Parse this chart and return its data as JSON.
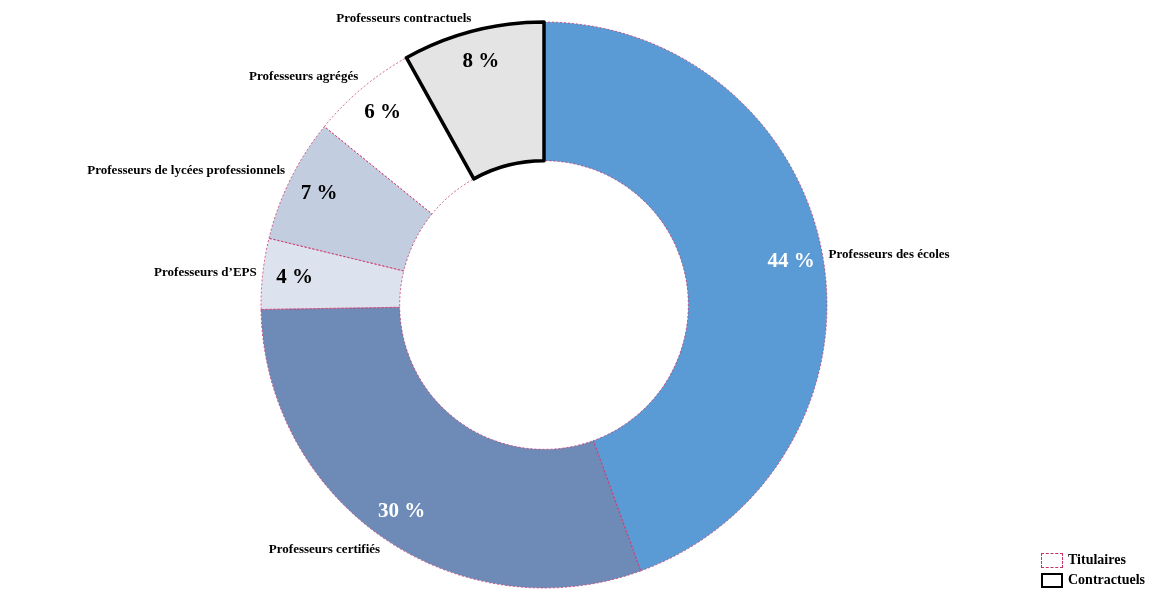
{
  "chart_data": {
    "type": "donut",
    "categories": [
      "Professeurs des écoles",
      "Professeurs certifiés",
      "Professeurs d’EPS",
      "Professeurs de lycées professionnels",
      "Professeurs agrégés",
      "Professeurs contractuels"
    ],
    "values": [
      44,
      30,
      4,
      7,
      6,
      8
    ],
    "colors": [
      "#5b9bd5",
      "#6e8bb8",
      "#dde3ee",
      "#c3cde0",
      "#ffffff",
      "#e4e4e4"
    ],
    "value_labels": [
      "44 %",
      "30 %",
      "4 %",
      "7 %",
      "6 %",
      "8 %"
    ],
    "annotations": [
      "Titulaires",
      "Contractuels"
    ]
  }
}
